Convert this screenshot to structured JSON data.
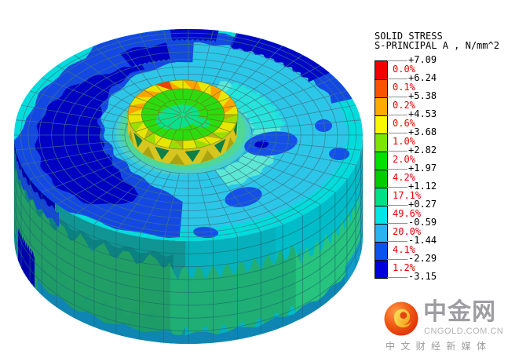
{
  "legend": {
    "title": "SOLID STRESS",
    "subtitle": "S-PRINCIPAL A , N/mm^2",
    "values": [
      "+7.09",
      "+6.24",
      "+5.38",
      "+4.53",
      "+3.68",
      "+2.82",
      "+1.97",
      "+1.12",
      "+0.27",
      "-0.59",
      "-1.44",
      "-2.29",
      "-3.15"
    ],
    "percents": [
      "0.0%",
      "0.1%",
      "0.2%",
      "0.6%",
      "1.0%",
      "2.0%",
      "4.2%",
      "17.1%",
      "49.6%",
      "20.0%",
      "4.1%",
      "1.2%"
    ],
    "band_colors": [
      "#f20000",
      "#fa5200",
      "#ffaa00",
      "#f8f800",
      "#7de600",
      "#00e000",
      "#00cd00",
      "#00e187",
      "#00e6e6",
      "#2ab3ef",
      "#0c52ef",
      "#0000dd"
    ],
    "percent_color": "#e60000"
  },
  "chart_data": {
    "type": "heatmap",
    "title": "SOLID STRESS",
    "subtitle": "S-PRINCIPAL A , N/mm^2",
    "units": "N/mm^2",
    "legend_position": "right",
    "subject": "FEA principal-stress contour plot of a cylindrical solid with a raised circular pad on top",
    "colorbar_boundaries": [
      7.09,
      6.24,
      5.38,
      4.53,
      3.68,
      2.82,
      1.97,
      1.12,
      0.27,
      -0.59,
      -1.44,
      -2.29,
      -3.15
    ],
    "band_percentages": [
      0.0,
      0.1,
      0.2,
      0.6,
      1.0,
      2.0,
      4.2,
      17.1,
      49.6,
      20.0,
      4.1,
      1.2
    ],
    "band_colors": [
      "#f20000",
      "#fa5200",
      "#ffaa00",
      "#f8f800",
      "#7de600",
      "#00e000",
      "#00cd00",
      "#00e187",
      "#00e6e6",
      "#2ab3ef",
      "#0c52ef",
      "#0000dd"
    ]
  },
  "watermark": {
    "brand": "中金网",
    "site": "CNGOLD.COM.CN",
    "tagline": "中 文 财 经 新 媒 体",
    "logo_color": "#e63711",
    "text_color": "#9d9da1"
  },
  "palette": {
    "background": "#ffffff",
    "mesh_face": "#3f7585",
    "mesh_wall": "#1e6a70",
    "mesh_disc": "#6f7420",
    "face_base": "#2cc6e8",
    "rim_cyan": "#00dcdc",
    "aqua_pale": "#5ce8d4",
    "aqua_bright": "#21e2dc",
    "blue": "#1448e2",
    "blue_blob": "#1450e8",
    "navy": "#0000c3",
    "navy_deep": "#0008c6",
    "base_ring_outer": "#49cfc8",
    "base_ring_inner": "#4fd795",
    "wall_right": "#00bcc8",
    "wall_mid": "#06b0bc",
    "wall_left": "#109494",
    "wall_dark_band": "#0b8181",
    "wall_green_left": "#219e66",
    "wall_green_mid": "#1fae74",
    "wall_green_right": "#26c47e",
    "wall_green_low": "#1d9c68",
    "wall_top_navy": "#0000a8",
    "wall_top_blue": "#1545da",
    "wall_bottom_band": "#0f85b4",
    "wall_bottom_right": "#119ccc",
    "wall_right_edge": "#0ea8d8",
    "wall_navy_blob": "#0000ad",
    "disc_side": "#d6c61e",
    "disc_side_dark": "#0e7f45",
    "disc_side_olive": "#a8a312",
    "disc_rim_yellow": "#e6e600",
    "disc_rim_orange": "#ffa300",
    "disc_rim_chartreuse": "#9ade00",
    "disc_rim_olive": "#b5b515",
    "disc_rim_red": "#e84400",
    "disc_green": "#2bdb10",
    "disc_mint": "#0ddf8e"
  }
}
